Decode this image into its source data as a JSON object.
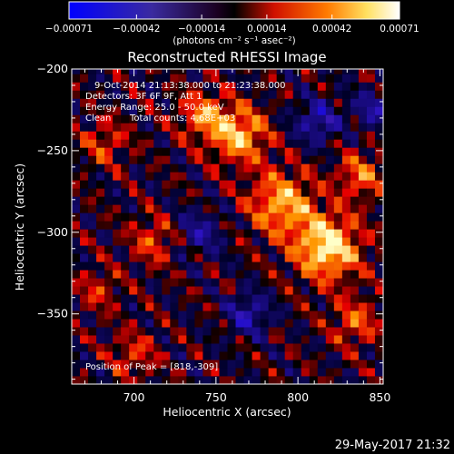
{
  "chart_data": {
    "type": "heatmap",
    "title": "Reconstructed RHESSI Image",
    "xlabel": "Heliocentric X (arcsec)",
    "ylabel": "Heliocentric Y (arcsec)",
    "xlim": [
      662,
      852
    ],
    "ylim": [
      -393,
      -200
    ],
    "x_ticks": [
      700,
      750,
      800,
      850
    ],
    "x_tick_labels": [
      "700",
      "750",
      "800",
      "850"
    ],
    "y_ticks": [
      -350,
      -300,
      -250,
      -200
    ],
    "y_tick_labels": [
      "−350",
      "−300",
      "−250",
      "−200"
    ],
    "colorbar": {
      "range": [
        -0.00071,
        0.00071
      ],
      "ticks": [
        -0.00071,
        -0.00042,
        -0.00014,
        0.00014,
        0.00042,
        0.00071
      ],
      "tick_labels": [
        "−0.00071",
        "−0.00042",
        "−0.00014",
        "0.00014",
        "0.00042",
        "0.00071"
      ],
      "unit_label": "(photons cm⁻² s⁻¹ asec⁻²)",
      "colors": [
        "#0000ff",
        "#5a2a9a",
        "#000000",
        "#ff1a00",
        "#ff9a00",
        "#ffffa0",
        "#ffffff"
      ]
    },
    "peak_position": [
      818,
      -309
    ],
    "sources": [
      {
        "x": 818,
        "y": -309,
        "sigma": 14,
        "amp": 1.0
      },
      {
        "x": 790,
        "y": -282,
        "sigma": 14,
        "amp": 0.75
      },
      {
        "x": 764,
        "y": -240,
        "sigma": 12,
        "amp": 0.8
      },
      {
        "x": 742,
        "y": -228,
        "sigma": 10,
        "amp": 0.6
      },
      {
        "x": 838,
        "y": -265,
        "sigma": 10,
        "amp": 0.55
      },
      {
        "x": 835,
        "y": -355,
        "sigma": 10,
        "amp": 0.5
      },
      {
        "x": 712,
        "y": -305,
        "sigma": 10,
        "amp": 0.45
      },
      {
        "x": 682,
        "y": -245,
        "sigma": 10,
        "amp": 0.4
      },
      {
        "x": 700,
        "y": -375,
        "sigma": 10,
        "amp": 0.4
      },
      {
        "x": 678,
        "y": -335,
        "sigma": 9,
        "amp": 0.35
      },
      {
        "x": 770,
        "y": -350,
        "sigma": 9,
        "amp": -0.55
      },
      {
        "x": 812,
        "y": -232,
        "sigma": 9,
        "amp": -0.6
      },
      {
        "x": 740,
        "y": -300,
        "sigma": 10,
        "amp": -0.45
      },
      {
        "x": 845,
        "y": -225,
        "sigma": 8,
        "amp": -0.5
      }
    ]
  },
  "annotations": {
    "time_range": "9-Oct-2014 21:13:38.000 to 21:23:38.000",
    "detectors": "Detectors: 3F 6F 9F, Att 1",
    "energy_range": "Energy Range: 25.0 - 50.0 keV",
    "clean": "Clean",
    "total_counts": "Total counts: 4.68E+03",
    "peak": "Position of Peak = [818,-309]"
  },
  "footer_date": "29-May-2017 21:32"
}
